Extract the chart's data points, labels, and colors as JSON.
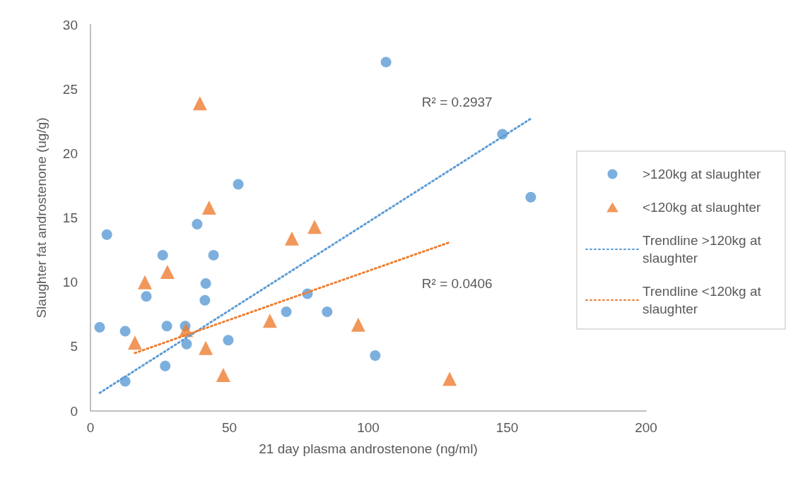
{
  "chart_data": {
    "type": "scatter",
    "xlabel": "21 day plasma androstenone (ng/ml)",
    "ylabel": "Slaughter fat androstenone (ug/g)",
    "xlim": [
      0,
      200
    ],
    "xticks": [
      0,
      50,
      100,
      150,
      200
    ],
    "ylim": [
      0,
      30
    ],
    "yticks": [
      0,
      5,
      10,
      15,
      20,
      25,
      30
    ],
    "grid": false,
    "legend": "right",
    "series": [
      {
        "name": ">120kg at slaughter",
        "marker": "circle",
        "color": "#5b9bd5",
        "x": [
          3.3,
          5.9,
          12.5,
          12.5,
          20.1,
          26.0,
          26.9,
          27.5,
          34.1,
          34.6,
          38.4,
          41.2,
          41.5,
          44.3,
          49.6,
          53.2,
          70.5,
          78.1,
          85.2,
          102.5,
          106.4,
          148.3,
          158.5
        ],
        "values": [
          6.5,
          13.7,
          6.2,
          2.3,
          8.9,
          12.1,
          3.5,
          6.6,
          6.6,
          5.2,
          14.5,
          8.6,
          9.9,
          12.1,
          5.5,
          17.6,
          7.7,
          9.1,
          7.7,
          4.3,
          27.1,
          21.5,
          16.6
        ]
      },
      {
        "name": "<120kg at slaughter",
        "marker": "triangle",
        "color": "#ed7d31",
        "x": [
          16.0,
          19.6,
          27.7,
          39.4,
          34.4,
          42.7,
          41.5,
          47.8,
          64.6,
          72.5,
          80.7,
          96.4,
          129.3
        ],
        "values": [
          5.3,
          10.0,
          10.8,
          23.9,
          6.3,
          15.8,
          4.9,
          2.8,
          7.0,
          13.4,
          14.3,
          6.7,
          2.5
        ]
      },
      {
        "name": "Trendline >120kg at slaughter",
        "type": "line",
        "marker": "none",
        "line_style": "dotted",
        "color": "#5b9bd5",
        "x": [
          3.3,
          158.5
        ],
        "values": [
          1.4,
          22.7
        ]
      },
      {
        "name": "Trendline <120kg at slaughter",
        "type": "line",
        "marker": "none",
        "line_style": "dotted",
        "color": "#ed7d31",
        "x": [
          16.0,
          129.3
        ],
        "values": [
          4.5,
          13.1
        ]
      }
    ],
    "annotations": [
      "R² = 0.2937",
      "R² = 0.0406"
    ]
  }
}
